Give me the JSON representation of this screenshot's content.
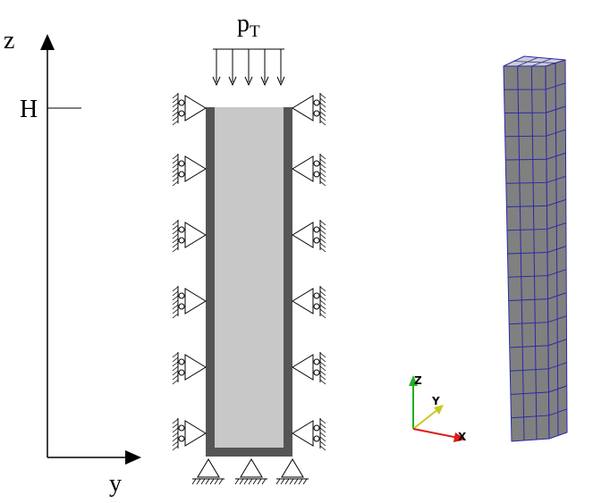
{
  "labels": {
    "z_axis": "z",
    "y_axis": "y",
    "height": "H",
    "pressure_base": "p",
    "pressure_sub": "T"
  },
  "triad": {
    "z": "Z",
    "y": "Y",
    "x": "X",
    "colors": {
      "z": "#22b022",
      "y": "#c8c81e",
      "x": "#e01818"
    }
  },
  "colors": {
    "wall": "#555555",
    "core": "#c8c8c8",
    "mesh_face": "#808080",
    "mesh_top": "#cfcfcf",
    "mesh_line": "#2a2aa8"
  },
  "mesh": {
    "rows": 16,
    "cols_front": 3,
    "cols_side": 2
  }
}
